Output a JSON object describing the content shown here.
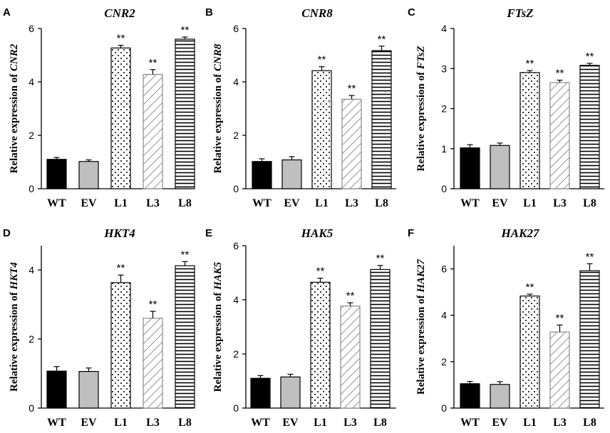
{
  "colors": {
    "wt_fill": "#000000",
    "ev_fill": "#bfbfbf",
    "l3_stroke": "#8a8a8a",
    "axis": "#000000"
  },
  "chart_data": [
    {
      "type": "bar",
      "panel": "A",
      "title": "CNR2",
      "ylabel_prefix": "Relative expression of ",
      "ylabel_gene": "CNR2",
      "categories": [
        "WT",
        "EV",
        "L1",
        "L3",
        "L8"
      ],
      "values": [
        1.1,
        1.02,
        5.27,
        4.28,
        5.6
      ],
      "errors": [
        0.07,
        0.06,
        0.1,
        0.18,
        0.08
      ],
      "significance": [
        "",
        "",
        "**",
        "**",
        "**"
      ],
      "patterns": [
        "solid-black",
        "solid-gray",
        "dots",
        "diagonal",
        "horizontal"
      ],
      "ylim": [
        0,
        6
      ],
      "yticks": [
        0,
        2,
        4,
        6
      ]
    },
    {
      "type": "bar",
      "panel": "B",
      "title": "CNR8",
      "ylabel_prefix": "Relative expression of ",
      "ylabel_gene": "CNR8",
      "categories": [
        "WT",
        "EV",
        "L1",
        "L3",
        "L8"
      ],
      "values": [
        1.02,
        1.08,
        4.42,
        3.35,
        5.17
      ],
      "errors": [
        0.1,
        0.12,
        0.15,
        0.14,
        0.17
      ],
      "significance": [
        "",
        "",
        "**",
        "**",
        "**"
      ],
      "patterns": [
        "solid-black",
        "solid-gray",
        "dots",
        "diagonal",
        "horizontal"
      ],
      "ylim": [
        0,
        6
      ],
      "yticks": [
        0,
        2,
        4,
        6
      ]
    },
    {
      "type": "bar",
      "panel": "C",
      "title": "FTsZ",
      "ylabel_prefix": "Relative expression of ",
      "ylabel_gene": "FTsZ",
      "categories": [
        "WT",
        "EV",
        "L1",
        "L3",
        "L8"
      ],
      "values": [
        1.02,
        1.08,
        2.9,
        2.65,
        3.08
      ],
      "errors": [
        0.08,
        0.06,
        0.05,
        0.06,
        0.05
      ],
      "significance": [
        "",
        "",
        "**",
        "**",
        "**"
      ],
      "patterns": [
        "solid-black",
        "solid-gray",
        "dots",
        "diagonal",
        "horizontal"
      ],
      "ylim": [
        0,
        4
      ],
      "yticks": [
        0,
        1,
        2,
        3,
        4
      ]
    },
    {
      "type": "bar",
      "panel": "D",
      "title": "HKT4",
      "ylabel_prefix": "Relative expression of ",
      "ylabel_gene": "HKT4",
      "categories": [
        "WT",
        "EV",
        "L1",
        "L3",
        "L8"
      ],
      "values": [
        1.07,
        1.06,
        3.63,
        2.6,
        4.12
      ],
      "errors": [
        0.13,
        0.1,
        0.22,
        0.2,
        0.12
      ],
      "significance": [
        "",
        "",
        "**",
        "**",
        "**"
      ],
      "patterns": [
        "solid-black",
        "solid-gray",
        "dots",
        "diagonal",
        "horizontal"
      ],
      "ylim": [
        0,
        4.7
      ],
      "yticks": [
        0,
        2,
        4
      ]
    },
    {
      "type": "bar",
      "panel": "E",
      "title": "HAK5",
      "ylabel_prefix": "Relative expression of ",
      "ylabel_gene": "HAK5",
      "categories": [
        "WT",
        "EV",
        "L1",
        "L3",
        "L8"
      ],
      "values": [
        1.1,
        1.15,
        4.65,
        3.77,
        5.12
      ],
      "errors": [
        0.1,
        0.1,
        0.15,
        0.12,
        0.15
      ],
      "significance": [
        "",
        "",
        "**",
        "**",
        "**"
      ],
      "patterns": [
        "solid-black",
        "solid-gray",
        "dots",
        "diagonal",
        "horizontal"
      ],
      "ylim": [
        0,
        6
      ],
      "yticks": [
        0,
        2,
        4,
        6
      ]
    },
    {
      "type": "bar",
      "panel": "F",
      "title": "HAK27",
      "ylabel_prefix": "Relative expression of ",
      "ylabel_gene": "HAK27",
      "categories": [
        "WT",
        "EV",
        "L1",
        "L3",
        "L8"
      ],
      "values": [
        1.05,
        1.02,
        4.83,
        3.28,
        5.92
      ],
      "errors": [
        0.1,
        0.12,
        0.08,
        0.3,
        0.3
      ],
      "significance": [
        "",
        "",
        "**",
        "**",
        "**"
      ],
      "patterns": [
        "solid-black",
        "solid-gray",
        "dots",
        "diagonal",
        "horizontal"
      ],
      "ylim": [
        0,
        7
      ],
      "yticks": [
        0,
        2,
        4,
        6
      ]
    }
  ]
}
